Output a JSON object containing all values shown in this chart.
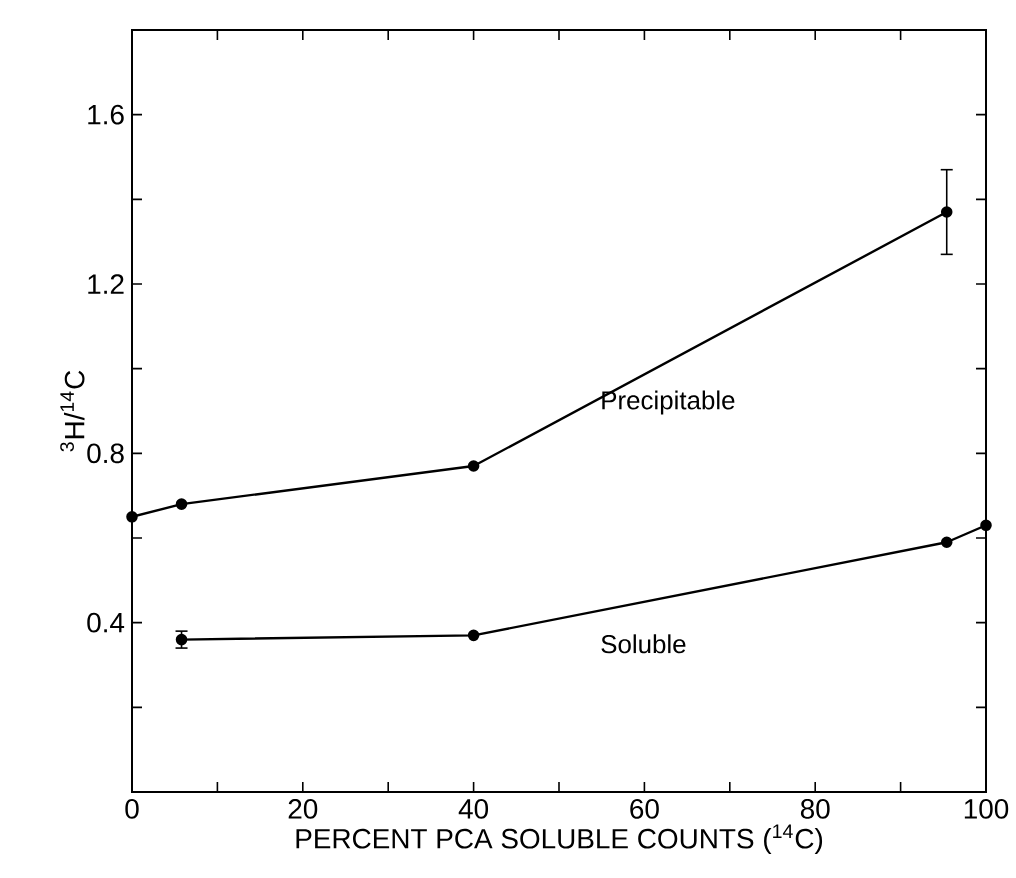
{
  "chart_data": {
    "type": "line",
    "xlabel": "PERCENT PCA SOLUBLE COUNTS ($^{14}$C)",
    "ylabel": "$^{3}$H/$^{14}$C",
    "xlim": [
      0,
      100
    ],
    "ylim": [
      0,
      1.8
    ],
    "xticks": [
      0,
      {
        "value": 10,
        "label": null
      },
      20,
      {
        "value": 30,
        "label": null
      },
      40,
      {
        "value": 50,
        "label": null
      },
      60,
      {
        "value": 70,
        "label": null
      },
      80,
      {
        "value": 90,
        "label": null
      },
      100
    ],
    "yticks": [
      {
        "value": 0.2,
        "label": null
      },
      0.4,
      {
        "value": 0.6,
        "label": null
      },
      0.8,
      {
        "value": 1.0,
        "label": null
      },
      1.2,
      {
        "value": 1.4,
        "label": null
      },
      1.6
    ],
    "marker": "circle",
    "line_style": "solid",
    "grid": false,
    "legend": false,
    "series": [
      {
        "name": "Precipitable",
        "color": "#000000",
        "x": [
          0,
          5.8,
          40,
          95.4
        ],
        "values": [
          0.65,
          0.68,
          0.77,
          1.37
        ],
        "errors": [
          null,
          null,
          null,
          [
            1.27,
            1.47
          ]
        ]
      },
      {
        "name": "Soluble",
        "color": "#000000",
        "x": [
          5.8,
          40,
          95.4,
          100
        ],
        "values": [
          0.36,
          0.37,
          0.59,
          0.63
        ],
        "errors": [
          0.02,
          null,
          null,
          null
        ]
      }
    ]
  }
}
